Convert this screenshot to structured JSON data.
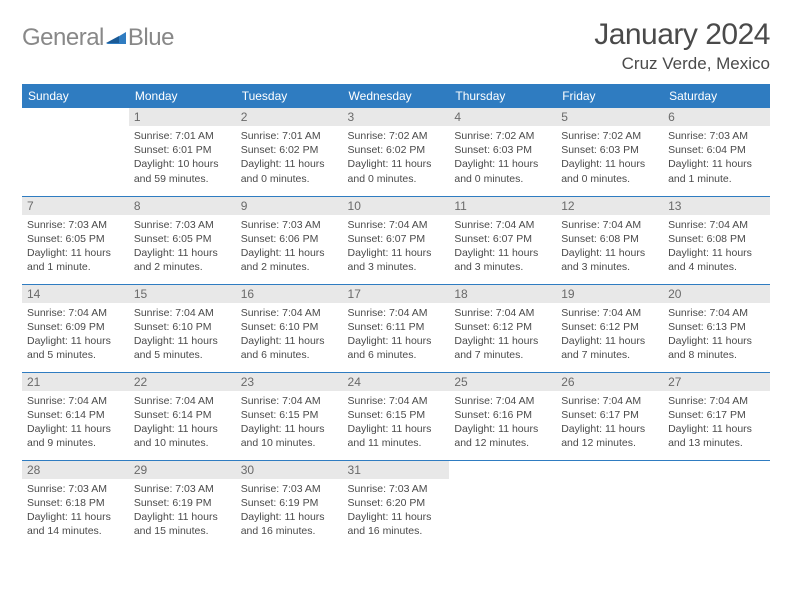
{
  "brand": {
    "text_a": "General",
    "text_b": "Blue",
    "mark_color": "#2f7cc1"
  },
  "title": {
    "month": "January 2024",
    "location": "Cruz Verde, Mexico"
  },
  "colors": {
    "header_bg": "#2f7cc1",
    "daynum_bg": "#e8e8e8",
    "rule": "#2f7cc1",
    "text": "#4a4a4a",
    "logo_text": "#888888"
  },
  "day_headers": [
    "Sunday",
    "Monday",
    "Tuesday",
    "Wednesday",
    "Thursday",
    "Friday",
    "Saturday"
  ],
  "weeks": [
    [
      {
        "n": "",
        "sr": "",
        "ss": "",
        "dl": "",
        "empty": true
      },
      {
        "n": "1",
        "sr": "Sunrise: 7:01 AM",
        "ss": "Sunset: 6:01 PM",
        "dl": "Daylight: 10 hours and 59 minutes."
      },
      {
        "n": "2",
        "sr": "Sunrise: 7:01 AM",
        "ss": "Sunset: 6:02 PM",
        "dl": "Daylight: 11 hours and 0 minutes."
      },
      {
        "n": "3",
        "sr": "Sunrise: 7:02 AM",
        "ss": "Sunset: 6:02 PM",
        "dl": "Daylight: 11 hours and 0 minutes."
      },
      {
        "n": "4",
        "sr": "Sunrise: 7:02 AM",
        "ss": "Sunset: 6:03 PM",
        "dl": "Daylight: 11 hours and 0 minutes."
      },
      {
        "n": "5",
        "sr": "Sunrise: 7:02 AM",
        "ss": "Sunset: 6:03 PM",
        "dl": "Daylight: 11 hours and 0 minutes."
      },
      {
        "n": "6",
        "sr": "Sunrise: 7:03 AM",
        "ss": "Sunset: 6:04 PM",
        "dl": "Daylight: 11 hours and 1 minute."
      }
    ],
    [
      {
        "n": "7",
        "sr": "Sunrise: 7:03 AM",
        "ss": "Sunset: 6:05 PM",
        "dl": "Daylight: 11 hours and 1 minute."
      },
      {
        "n": "8",
        "sr": "Sunrise: 7:03 AM",
        "ss": "Sunset: 6:05 PM",
        "dl": "Daylight: 11 hours and 2 minutes."
      },
      {
        "n": "9",
        "sr": "Sunrise: 7:03 AM",
        "ss": "Sunset: 6:06 PM",
        "dl": "Daylight: 11 hours and 2 minutes."
      },
      {
        "n": "10",
        "sr": "Sunrise: 7:04 AM",
        "ss": "Sunset: 6:07 PM",
        "dl": "Daylight: 11 hours and 3 minutes."
      },
      {
        "n": "11",
        "sr": "Sunrise: 7:04 AM",
        "ss": "Sunset: 6:07 PM",
        "dl": "Daylight: 11 hours and 3 minutes."
      },
      {
        "n": "12",
        "sr": "Sunrise: 7:04 AM",
        "ss": "Sunset: 6:08 PM",
        "dl": "Daylight: 11 hours and 3 minutes."
      },
      {
        "n": "13",
        "sr": "Sunrise: 7:04 AM",
        "ss": "Sunset: 6:08 PM",
        "dl": "Daylight: 11 hours and 4 minutes."
      }
    ],
    [
      {
        "n": "14",
        "sr": "Sunrise: 7:04 AM",
        "ss": "Sunset: 6:09 PM",
        "dl": "Daylight: 11 hours and 5 minutes."
      },
      {
        "n": "15",
        "sr": "Sunrise: 7:04 AM",
        "ss": "Sunset: 6:10 PM",
        "dl": "Daylight: 11 hours and 5 minutes."
      },
      {
        "n": "16",
        "sr": "Sunrise: 7:04 AM",
        "ss": "Sunset: 6:10 PM",
        "dl": "Daylight: 11 hours and 6 minutes."
      },
      {
        "n": "17",
        "sr": "Sunrise: 7:04 AM",
        "ss": "Sunset: 6:11 PM",
        "dl": "Daylight: 11 hours and 6 minutes."
      },
      {
        "n": "18",
        "sr": "Sunrise: 7:04 AM",
        "ss": "Sunset: 6:12 PM",
        "dl": "Daylight: 11 hours and 7 minutes."
      },
      {
        "n": "19",
        "sr": "Sunrise: 7:04 AM",
        "ss": "Sunset: 6:12 PM",
        "dl": "Daylight: 11 hours and 7 minutes."
      },
      {
        "n": "20",
        "sr": "Sunrise: 7:04 AM",
        "ss": "Sunset: 6:13 PM",
        "dl": "Daylight: 11 hours and 8 minutes."
      }
    ],
    [
      {
        "n": "21",
        "sr": "Sunrise: 7:04 AM",
        "ss": "Sunset: 6:14 PM",
        "dl": "Daylight: 11 hours and 9 minutes."
      },
      {
        "n": "22",
        "sr": "Sunrise: 7:04 AM",
        "ss": "Sunset: 6:14 PM",
        "dl": "Daylight: 11 hours and 10 minutes."
      },
      {
        "n": "23",
        "sr": "Sunrise: 7:04 AM",
        "ss": "Sunset: 6:15 PM",
        "dl": "Daylight: 11 hours and 10 minutes."
      },
      {
        "n": "24",
        "sr": "Sunrise: 7:04 AM",
        "ss": "Sunset: 6:15 PM",
        "dl": "Daylight: 11 hours and 11 minutes."
      },
      {
        "n": "25",
        "sr": "Sunrise: 7:04 AM",
        "ss": "Sunset: 6:16 PM",
        "dl": "Daylight: 11 hours and 12 minutes."
      },
      {
        "n": "26",
        "sr": "Sunrise: 7:04 AM",
        "ss": "Sunset: 6:17 PM",
        "dl": "Daylight: 11 hours and 12 minutes."
      },
      {
        "n": "27",
        "sr": "Sunrise: 7:04 AM",
        "ss": "Sunset: 6:17 PM",
        "dl": "Daylight: 11 hours and 13 minutes."
      }
    ],
    [
      {
        "n": "28",
        "sr": "Sunrise: 7:03 AM",
        "ss": "Sunset: 6:18 PM",
        "dl": "Daylight: 11 hours and 14 minutes."
      },
      {
        "n": "29",
        "sr": "Sunrise: 7:03 AM",
        "ss": "Sunset: 6:19 PM",
        "dl": "Daylight: 11 hours and 15 minutes."
      },
      {
        "n": "30",
        "sr": "Sunrise: 7:03 AM",
        "ss": "Sunset: 6:19 PM",
        "dl": "Daylight: 11 hours and 16 minutes."
      },
      {
        "n": "31",
        "sr": "Sunrise: 7:03 AM",
        "ss": "Sunset: 6:20 PM",
        "dl": "Daylight: 11 hours and 16 minutes."
      },
      {
        "n": "",
        "sr": "",
        "ss": "",
        "dl": "",
        "empty": true
      },
      {
        "n": "",
        "sr": "",
        "ss": "",
        "dl": "",
        "empty": true
      },
      {
        "n": "",
        "sr": "",
        "ss": "",
        "dl": "",
        "empty": true
      }
    ]
  ]
}
